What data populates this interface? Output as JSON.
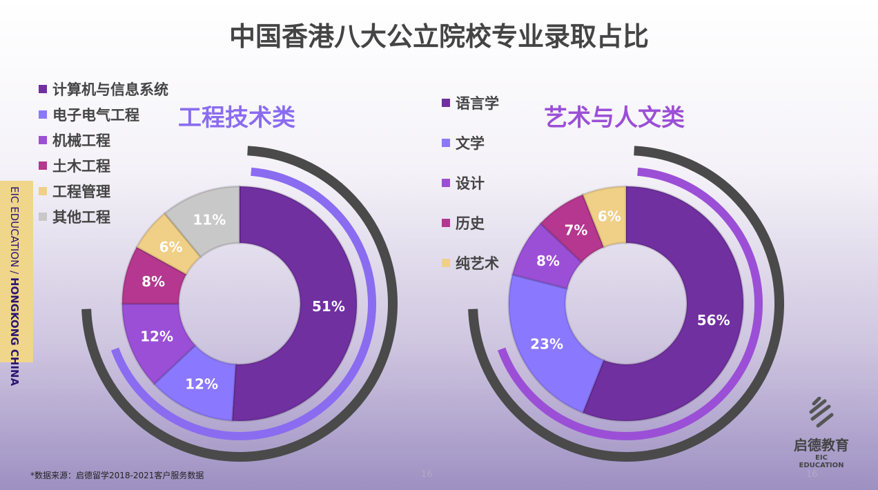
{
  "title": "中国香港八大公立院校专业录取占比",
  "side_label": {
    "part1": "EIC EDUCATION",
    "sep": " / ",
    "part2": "HONGKONG CHINA"
  },
  "source_note": "*数据来源：启德留学2018-2021客户服务数据",
  "page_numbers": [
    "16",
    "16"
  ],
  "logo": {
    "cn": "启德教育",
    "en": "EIC EDUCATION"
  },
  "chart_data": [
    {
      "type": "pie",
      "subtitle": "工程技术类",
      "subtitle_color": "#8a6cf0",
      "arc_color": "#8a6cf0",
      "categories": [
        "计算机与信息系统",
        "电子电气工程",
        "机械工程",
        "土木工程",
        "工程管理",
        "其他工程"
      ],
      "values": [
        51,
        12,
        12,
        8,
        6,
        11
      ],
      "labels": [
        "51%",
        "12%",
        "12%",
        "8%",
        "6%",
        "11%"
      ],
      "colors": [
        "#7030a0",
        "#8a78ff",
        "#9b4fd6",
        "#b5378f",
        "#f0cf86",
        "#c8c8c8"
      ],
      "legend": "left"
    },
    {
      "type": "pie",
      "subtitle": "艺术与人文类",
      "subtitle_color": "#9b4fd6",
      "arc_color": "#9b4fd6",
      "categories": [
        "语言学",
        "文学",
        "设计",
        "历史",
        "纯艺术"
      ],
      "values": [
        56,
        23,
        8,
        7,
        6
      ],
      "labels": [
        "56%",
        "23%",
        "8%",
        "7%",
        "6%"
      ],
      "colors": [
        "#7030a0",
        "#8a78ff",
        "#9b4fd6",
        "#b5378f",
        "#f0cf86"
      ],
      "legend": "left"
    }
  ]
}
